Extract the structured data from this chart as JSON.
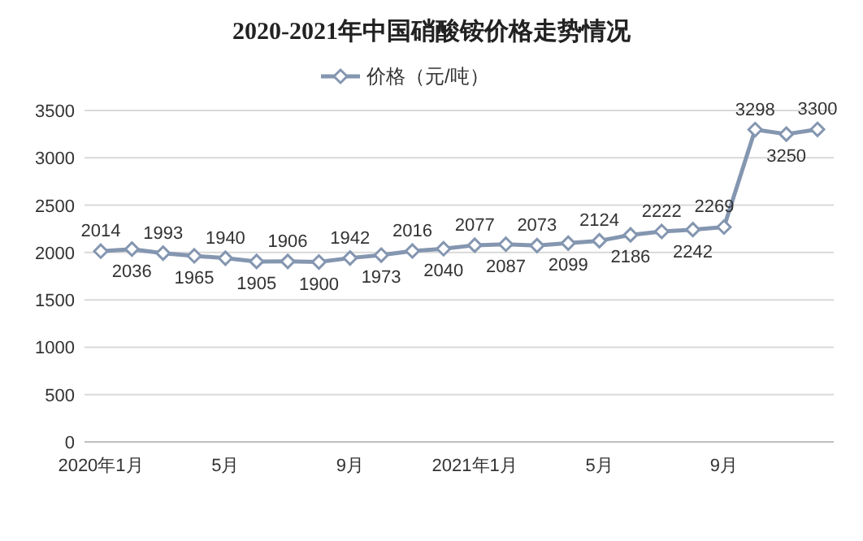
{
  "chart_data": {
    "type": "line",
    "title": "2020-2021年中国硝酸铵价格走势情况",
    "categories": [
      "2020年1月",
      null,
      null,
      null,
      "5月",
      null,
      null,
      null,
      "9月",
      null,
      null,
      null,
      "2021年1月",
      null,
      null,
      null,
      "5月",
      null,
      null,
      null,
      "9月",
      null,
      null,
      null
    ],
    "series": [
      {
        "name": "价格（元/吨）",
        "color": "#8496b0",
        "values": [
          2014,
          2036,
          1993,
          1965,
          1940,
          1905,
          1906,
          1900,
          1942,
          1973,
          2016,
          2040,
          2077,
          2087,
          2073,
          2099,
          2124,
          2186,
          2222,
          2242,
          2269,
          3298,
          3250,
          3300
        ]
      }
    ],
    "ylim": [
      0,
      3500
    ],
    "yticks": [
      0,
      500,
      1000,
      1500,
      2000,
      2500,
      3000,
      3500
    ],
    "grid": "y",
    "legend": "top",
    "marker": "diamond",
    "data_labels": true
  }
}
